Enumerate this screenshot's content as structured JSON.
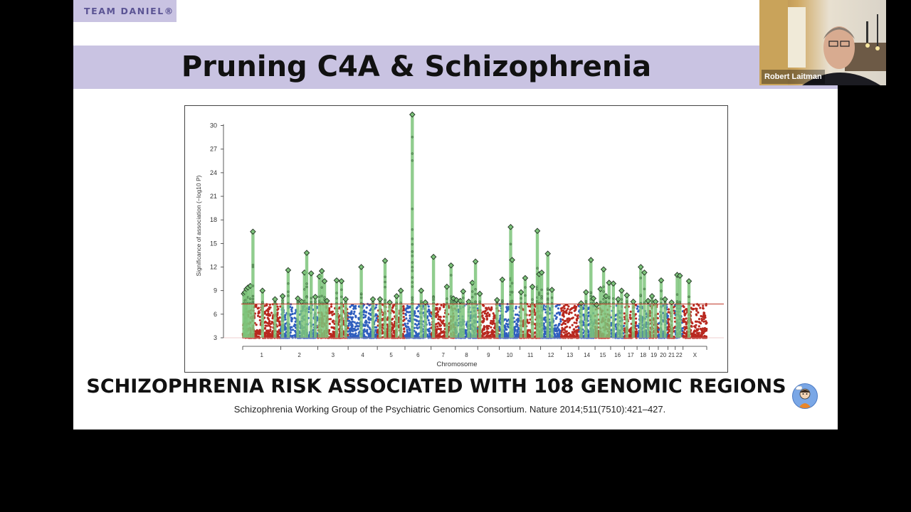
{
  "slide": {
    "brand": "TEAM DANIEL®",
    "title": "Pruning C4A & Schizophrenia",
    "headline": "SCHIZOPHRENIA RISK ASSOCIATED WITH 108 GENOMIC REGIONS",
    "citation": "Schizophrenia Working Group of the Psychiatric Genomics Consortium. Nature 2014;511(7510):421–427.",
    "logo_icon": "team-daniel-mascot-icon"
  },
  "webcam": {
    "name": "Robert Laitman"
  },
  "colors": {
    "title_bar": "#c9c3e2",
    "red_series": "#b8281f",
    "blue_series": "#2f5fbe",
    "green_hits": "#7cc47a",
    "threshold": "#c0392b"
  },
  "chart_data": {
    "type": "scatter",
    "subtype": "manhattan",
    "xlabel": "Chromosome",
    "ylabel": "Significance of association (−log10 P)",
    "ylim": [
      3,
      31.5
    ],
    "yticks": [
      3,
      6,
      9,
      12,
      15,
      18,
      21,
      24,
      27,
      30
    ],
    "significance_threshold": 7.3,
    "grid": false,
    "chromosomes": [
      "1",
      "2",
      "3",
      "4",
      "5",
      "6",
      "7",
      "8",
      "9",
      "10",
      "11",
      "12",
      "13",
      "14",
      "15",
      "16",
      "17",
      "18",
      "19",
      "20",
      "21",
      "22",
      "X"
    ],
    "chromosome_lengths": [
      249,
      243,
      198,
      191,
      181,
      171,
      159,
      146,
      141,
      136,
      135,
      134,
      115,
      107,
      102,
      90,
      83,
      80,
      59,
      63,
      48,
      51,
      155
    ],
    "peaks": [
      {
        "chr": "1",
        "pos": 0.03,
        "value": 8.6
      },
      {
        "chr": "1",
        "pos": 0.06,
        "value": 8.8
      },
      {
        "chr": "1",
        "pos": 0.1,
        "value": 9.2
      },
      {
        "chr": "1",
        "pos": 0.14,
        "value": 9.4
      },
      {
        "chr": "1",
        "pos": 0.2,
        "value": 9.6
      },
      {
        "chr": "1",
        "pos": 0.27,
        "value": 16.5
      },
      {
        "chr": "1",
        "pos": 0.52,
        "value": 9.0
      },
      {
        "chr": "1",
        "pos": 0.85,
        "value": 7.9
      },
      {
        "chr": "2",
        "pos": 0.05,
        "value": 8.3
      },
      {
        "chr": "2",
        "pos": 0.2,
        "value": 11.6
      },
      {
        "chr": "2",
        "pos": 0.46,
        "value": 8.0
      },
      {
        "chr": "2",
        "pos": 0.56,
        "value": 7.6
      },
      {
        "chr": "2",
        "pos": 0.64,
        "value": 11.3
      },
      {
        "chr": "2",
        "pos": 0.7,
        "value": 13.8
      },
      {
        "chr": "2",
        "pos": 0.82,
        "value": 11.2
      },
      {
        "chr": "2",
        "pos": 0.93,
        "value": 8.2
      },
      {
        "chr": "3",
        "pos": 0.05,
        "value": 10.8
      },
      {
        "chr": "3",
        "pos": 0.13,
        "value": 11.5
      },
      {
        "chr": "3",
        "pos": 0.22,
        "value": 10.2
      },
      {
        "chr": "3",
        "pos": 0.3,
        "value": 7.7
      },
      {
        "chr": "3",
        "pos": 0.62,
        "value": 10.3
      },
      {
        "chr": "3",
        "pos": 0.78,
        "value": 10.2
      },
      {
        "chr": "3",
        "pos": 0.92,
        "value": 7.9
      },
      {
        "chr": "4",
        "pos": 0.45,
        "value": 12.0
      },
      {
        "chr": "4",
        "pos": 0.85,
        "value": 7.9
      },
      {
        "chr": "5",
        "pos": 0.1,
        "value": 7.9
      },
      {
        "chr": "5",
        "pos": 0.28,
        "value": 12.8
      },
      {
        "chr": "5",
        "pos": 0.45,
        "value": 7.5
      },
      {
        "chr": "5",
        "pos": 0.7,
        "value": 8.3
      },
      {
        "chr": "5",
        "pos": 0.85,
        "value": 9.0
      },
      {
        "chr": "6",
        "pos": 0.28,
        "value": 31.4
      },
      {
        "chr": "6",
        "pos": 0.62,
        "value": 9.0
      },
      {
        "chr": "6",
        "pos": 0.78,
        "value": 7.5
      },
      {
        "chr": "7",
        "pos": 0.1,
        "value": 13.3
      },
      {
        "chr": "7",
        "pos": 0.65,
        "value": 9.5
      },
      {
        "chr": "7",
        "pos": 0.82,
        "value": 12.2
      },
      {
        "chr": "7",
        "pos": 0.92,
        "value": 8.0
      },
      {
        "chr": "8",
        "pos": 0.05,
        "value": 7.8
      },
      {
        "chr": "8",
        "pos": 0.22,
        "value": 7.7
      },
      {
        "chr": "8",
        "pos": 0.35,
        "value": 8.9
      },
      {
        "chr": "8",
        "pos": 0.6,
        "value": 7.6
      },
      {
        "chr": "8",
        "pos": 0.76,
        "value": 10.0
      },
      {
        "chr": "8",
        "pos": 0.9,
        "value": 12.7
      },
      {
        "chr": "9",
        "pos": 0.1,
        "value": 8.6
      },
      {
        "chr": "9",
        "pos": 0.9,
        "value": 7.8
      },
      {
        "chr": "10",
        "pos": 0.15,
        "value": 10.4
      },
      {
        "chr": "10",
        "pos": 0.55,
        "value": 17.1
      },
      {
        "chr": "10",
        "pos": 0.62,
        "value": 12.9
      },
      {
        "chr": "11",
        "pos": 0.05,
        "value": 8.8
      },
      {
        "chr": "11",
        "pos": 0.25,
        "value": 10.6
      },
      {
        "chr": "11",
        "pos": 0.6,
        "value": 9.5
      },
      {
        "chr": "11",
        "pos": 0.84,
        "value": 16.6
      },
      {
        "chr": "11",
        "pos": 0.93,
        "value": 11.1
      },
      {
        "chr": "12",
        "pos": 0.05,
        "value": 11.3
      },
      {
        "chr": "12",
        "pos": 0.35,
        "value": 13.7
      },
      {
        "chr": "12",
        "pos": 0.55,
        "value": 9.1
      },
      {
        "chr": "14",
        "pos": 0.15,
        "value": 7.4
      },
      {
        "chr": "14",
        "pos": 0.45,
        "value": 8.8
      },
      {
        "chr": "14",
        "pos": 0.75,
        "value": 12.9
      },
      {
        "chr": "14",
        "pos": 0.9,
        "value": 8.0
      },
      {
        "chr": "15",
        "pos": 0.1,
        "value": 7.2
      },
      {
        "chr": "15",
        "pos": 0.35,
        "value": 9.2
      },
      {
        "chr": "15",
        "pos": 0.55,
        "value": 11.7
      },
      {
        "chr": "15",
        "pos": 0.7,
        "value": 8.3
      },
      {
        "chr": "15",
        "pos": 0.9,
        "value": 10.0
      },
      {
        "chr": "16",
        "pos": 0.2,
        "value": 9.9
      },
      {
        "chr": "16",
        "pos": 0.55,
        "value": 7.9
      },
      {
        "chr": "16",
        "pos": 0.8,
        "value": 9.0
      },
      {
        "chr": "17",
        "pos": 0.2,
        "value": 8.4
      },
      {
        "chr": "17",
        "pos": 0.7,
        "value": 7.6
      },
      {
        "chr": "18",
        "pos": 0.3,
        "value": 12.0
      },
      {
        "chr": "18",
        "pos": 0.6,
        "value": 11.3
      },
      {
        "chr": "18",
        "pos": 0.9,
        "value": 7.7
      },
      {
        "chr": "19",
        "pos": 0.3,
        "value": 8.3
      },
      {
        "chr": "19",
        "pos": 0.7,
        "value": 7.6
      },
      {
        "chr": "20",
        "pos": 0.3,
        "value": 10.3
      },
      {
        "chr": "20",
        "pos": 0.7,
        "value": 7.9
      },
      {
        "chr": "21",
        "pos": 0.5,
        "value": 7.5
      },
      {
        "chr": "22",
        "pos": 0.25,
        "value": 11.0
      },
      {
        "chr": "22",
        "pos": 0.6,
        "value": 10.9
      },
      {
        "chr": "X",
        "pos": 0.25,
        "value": 10.2
      }
    ]
  }
}
